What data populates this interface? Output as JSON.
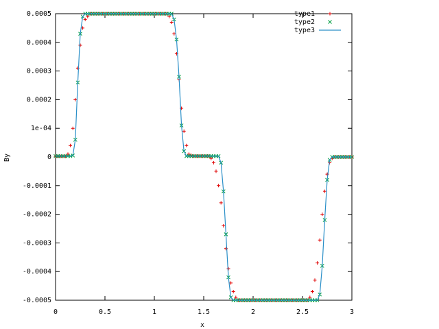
{
  "chart_data": {
    "type": "line",
    "xlabel": "x",
    "ylabel": "By",
    "xlim": [
      0,
      3
    ],
    "ylim": [
      -0.0005,
      0.0005
    ],
    "xticks": [
      0,
      0.5,
      1,
      1.5,
      2,
      2.5,
      3
    ],
    "yticks": [
      0.0005,
      0.0004,
      0.0003,
      0.0002,
      {
        "value": 0.0001,
        "label": "1e-04"
      },
      0,
      -0.0001,
      -0.0002,
      -0.0003,
      -0.0004,
      -0.0005
    ],
    "legend": "top right",
    "x": [
      0,
      0.025,
      0.05,
      0.075,
      0.1,
      0.125,
      0.15,
      0.175,
      0.2,
      0.225,
      0.25,
      0.275,
      0.3,
      0.325,
      0.35,
      0.375,
      0.4,
      0.425,
      0.45,
      0.475,
      0.5,
      0.525,
      0.55,
      0.575,
      0.6,
      0.625,
      0.65,
      0.675,
      0.7,
      0.725,
      0.75,
      0.775,
      0.8,
      0.825,
      0.85,
      0.875,
      0.9,
      0.925,
      0.95,
      0.975,
      1,
      1.025,
      1.05,
      1.075,
      1.1,
      1.125,
      1.15,
      1.175,
      1.2,
      1.225,
      1.25,
      1.275,
      1.3,
      1.325,
      1.35,
      1.375,
      1.4,
      1.425,
      1.45,
      1.475,
      1.5,
      1.525,
      1.55,
      1.575,
      1.6,
      1.625,
      1.65,
      1.675,
      1.7,
      1.725,
      1.75,
      1.775,
      1.8,
      1.825,
      1.85,
      1.875,
      1.9,
      1.925,
      1.95,
      1.975,
      2,
      2.025,
      2.05,
      2.075,
      2.1,
      2.125,
      2.15,
      2.175,
      2.2,
      2.225,
      2.25,
      2.275,
      2.3,
      2.325,
      2.35,
      2.375,
      2.4,
      2.425,
      2.45,
      2.475,
      2.5,
      2.525,
      2.55,
      2.575,
      2.6,
      2.625,
      2.65,
      2.675,
      2.7,
      2.725,
      2.75,
      2.775,
      2.8,
      2.825,
      2.85,
      2.875,
      2.9,
      2.925,
      2.95,
      2.975,
      3
    ],
    "series": [
      {
        "name": "type1",
        "color": "#e00000",
        "style": "plus",
        "values": [
          2e-06,
          2e-06,
          2e-06,
          2e-06,
          2e-06,
          1e-05,
          4e-05,
          0.0001,
          0.0002,
          0.00031,
          0.00039,
          0.00045,
          0.00048,
          0.00049,
          0.0005,
          0.0005,
          0.0005,
          0.0005,
          0.0005,
          0.0005,
          0.0005,
          0.0005,
          0.0005,
          0.0005,
          0.0005,
          0.0005,
          0.0005,
          0.0005,
          0.0005,
          0.0005,
          0.0005,
          0.0005,
          0.0005,
          0.0005,
          0.0005,
          0.0005,
          0.0005,
          0.0005,
          0.0005,
          0.0005,
          0.0005,
          0.0005,
          0.0005,
          0.0005,
          0.0005,
          0.0005,
          0.00049,
          0.00047,
          0.00043,
          0.00036,
          0.00027,
          0.00017,
          9e-05,
          4e-05,
          1e-05,
          5e-06,
          3e-06,
          3e-06,
          3e-06,
          3e-06,
          3e-06,
          3e-06,
          3e-06,
          -5e-06,
          -2e-05,
          -5e-05,
          -0.0001,
          -0.00016,
          -0.00024,
          -0.00032,
          -0.00039,
          -0.00044,
          -0.00047,
          -0.00049,
          -0.0005,
          -0.0005,
          -0.0005,
          -0.0005,
          -0.0005,
          -0.0005,
          -0.0005,
          -0.0005,
          -0.0005,
          -0.0005,
          -0.0005,
          -0.0005,
          -0.0005,
          -0.0005,
          -0.0005,
          -0.0005,
          -0.0005,
          -0.0005,
          -0.0005,
          -0.0005,
          -0.0005,
          -0.0005,
          -0.0005,
          -0.0005,
          -0.0005,
          -0.0005,
          -0.0005,
          -0.0005,
          -0.0005,
          -0.00049,
          -0.00047,
          -0.00043,
          -0.00037,
          -0.00029,
          -0.0002,
          -0.00012,
          -6e-05,
          -2e-05,
          -5e-06,
          0,
          0,
          0,
          0,
          0,
          0,
          0,
          0
        ]
      },
      {
        "name": "type2",
        "color": "#009e40",
        "style": "cross",
        "values": [
          3e-06,
          3e-06,
          3e-06,
          3e-06,
          3e-06,
          3e-06,
          3e-06,
          5e-06,
          6e-05,
          0.00026,
          0.00043,
          0.00049,
          0.0005,
          0.0005,
          0.0005,
          0.0005,
          0.0005,
          0.0005,
          0.0005,
          0.0005,
          0.0005,
          0.0005,
          0.0005,
          0.0005,
          0.0005,
          0.0005,
          0.0005,
          0.0005,
          0.0005,
          0.0005,
          0.0005,
          0.0005,
          0.0005,
          0.0005,
          0.0005,
          0.0005,
          0.0005,
          0.0005,
          0.0005,
          0.0005,
          0.0005,
          0.0005,
          0.0005,
          0.0005,
          0.0005,
          0.0005,
          0.0005,
          0.0005,
          0.00048,
          0.00041,
          0.00028,
          0.00011,
          2e-05,
          3e-06,
          3e-06,
          3e-06,
          3e-06,
          3e-06,
          3e-06,
          3e-06,
          3e-06,
          3e-06,
          3e-06,
          3e-06,
          3e-06,
          3e-06,
          3e-06,
          -2e-05,
          -0.00012,
          -0.00027,
          -0.00042,
          -0.00049,
          -0.0005,
          -0.0005,
          -0.0005,
          -0.0005,
          -0.0005,
          -0.0005,
          -0.0005,
          -0.0005,
          -0.0005,
          -0.0005,
          -0.0005,
          -0.0005,
          -0.0005,
          -0.0005,
          -0.0005,
          -0.0005,
          -0.0005,
          -0.0005,
          -0.0005,
          -0.0005,
          -0.0005,
          -0.0005,
          -0.0005,
          -0.0005,
          -0.0005,
          -0.0005,
          -0.0005,
          -0.0005,
          -0.0005,
          -0.0005,
          -0.0005,
          -0.0005,
          -0.0005,
          -0.0005,
          -0.0005,
          -0.00048,
          -0.00038,
          -0.00022,
          -8e-05,
          -1e-05,
          0,
          0,
          0,
          0,
          0,
          0,
          0,
          0,
          0
        ]
      },
      {
        "name": "type3",
        "color": "#2a8fc8",
        "style": "line",
        "values": [
          3e-06,
          3e-06,
          3e-06,
          3e-06,
          3e-06,
          3e-06,
          3e-06,
          5e-06,
          6e-05,
          0.00026,
          0.00043,
          0.00049,
          0.0005,
          0.0005,
          0.0005,
          0.0005,
          0.0005,
          0.0005,
          0.0005,
          0.0005,
          0.0005,
          0.0005,
          0.0005,
          0.0005,
          0.0005,
          0.0005,
          0.0005,
          0.0005,
          0.0005,
          0.0005,
          0.0005,
          0.0005,
          0.0005,
          0.0005,
          0.0005,
          0.0005,
          0.0005,
          0.0005,
          0.0005,
          0.0005,
          0.0005,
          0.0005,
          0.0005,
          0.0005,
          0.0005,
          0.0005,
          0.0005,
          0.0005,
          0.00048,
          0.00041,
          0.00028,
          0.00011,
          2e-05,
          3e-06,
          3e-06,
          3e-06,
          3e-06,
          3e-06,
          3e-06,
          3e-06,
          3e-06,
          3e-06,
          3e-06,
          3e-06,
          3e-06,
          3e-06,
          3e-06,
          -2e-05,
          -0.00012,
          -0.00027,
          -0.00042,
          -0.00049,
          -0.0005,
          -0.0005,
          -0.0005,
          -0.0005,
          -0.0005,
          -0.0005,
          -0.0005,
          -0.0005,
          -0.0005,
          -0.0005,
          -0.0005,
          -0.0005,
          -0.0005,
          -0.0005,
          -0.0005,
          -0.0005,
          -0.0005,
          -0.0005,
          -0.0005,
          -0.0005,
          -0.0005,
          -0.0005,
          -0.0005,
          -0.0005,
          -0.0005,
          -0.0005,
          -0.0005,
          -0.0005,
          -0.0005,
          -0.0005,
          -0.0005,
          -0.0005,
          -0.0005,
          -0.0005,
          -0.0005,
          -0.00048,
          -0.00038,
          -0.00022,
          -8e-05,
          -1e-05,
          0,
          0,
          0,
          0,
          0,
          0,
          0,
          0,
          0
        ]
      }
    ]
  }
}
